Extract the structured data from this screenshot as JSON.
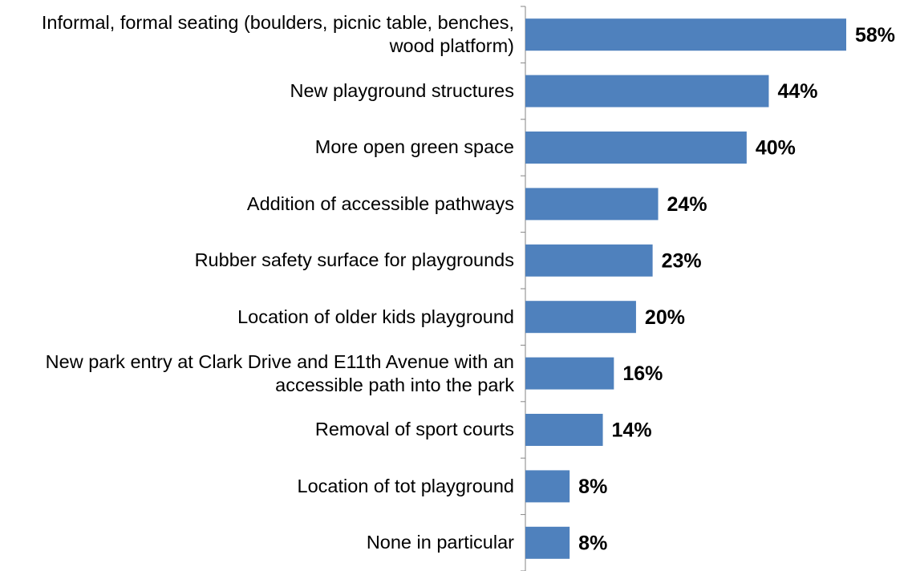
{
  "chart_data": {
    "type": "bar",
    "orientation": "horizontal",
    "categories": [
      "Informal, formal seating (boulders, picnic table, benches, wood platform)",
      "New playground structures",
      "More open green space",
      "Addition of accessible pathways",
      "Rubber safety surface for playgrounds",
      "Location of older kids playground",
      "New park entry at Clark Drive and E11th Avenue with an accessible path into the park",
      "Removal of sport courts",
      "Location of tot playground",
      "None in particular"
    ],
    "values": [
      58,
      44,
      40,
      24,
      23,
      20,
      16,
      14,
      8,
      8
    ],
    "value_labels": [
      "58%",
      "44%",
      "40%",
      "24%",
      "23%",
      "20%",
      "16%",
      "14%",
      "8%",
      "8%"
    ],
    "color": "#4f81bd"
  }
}
